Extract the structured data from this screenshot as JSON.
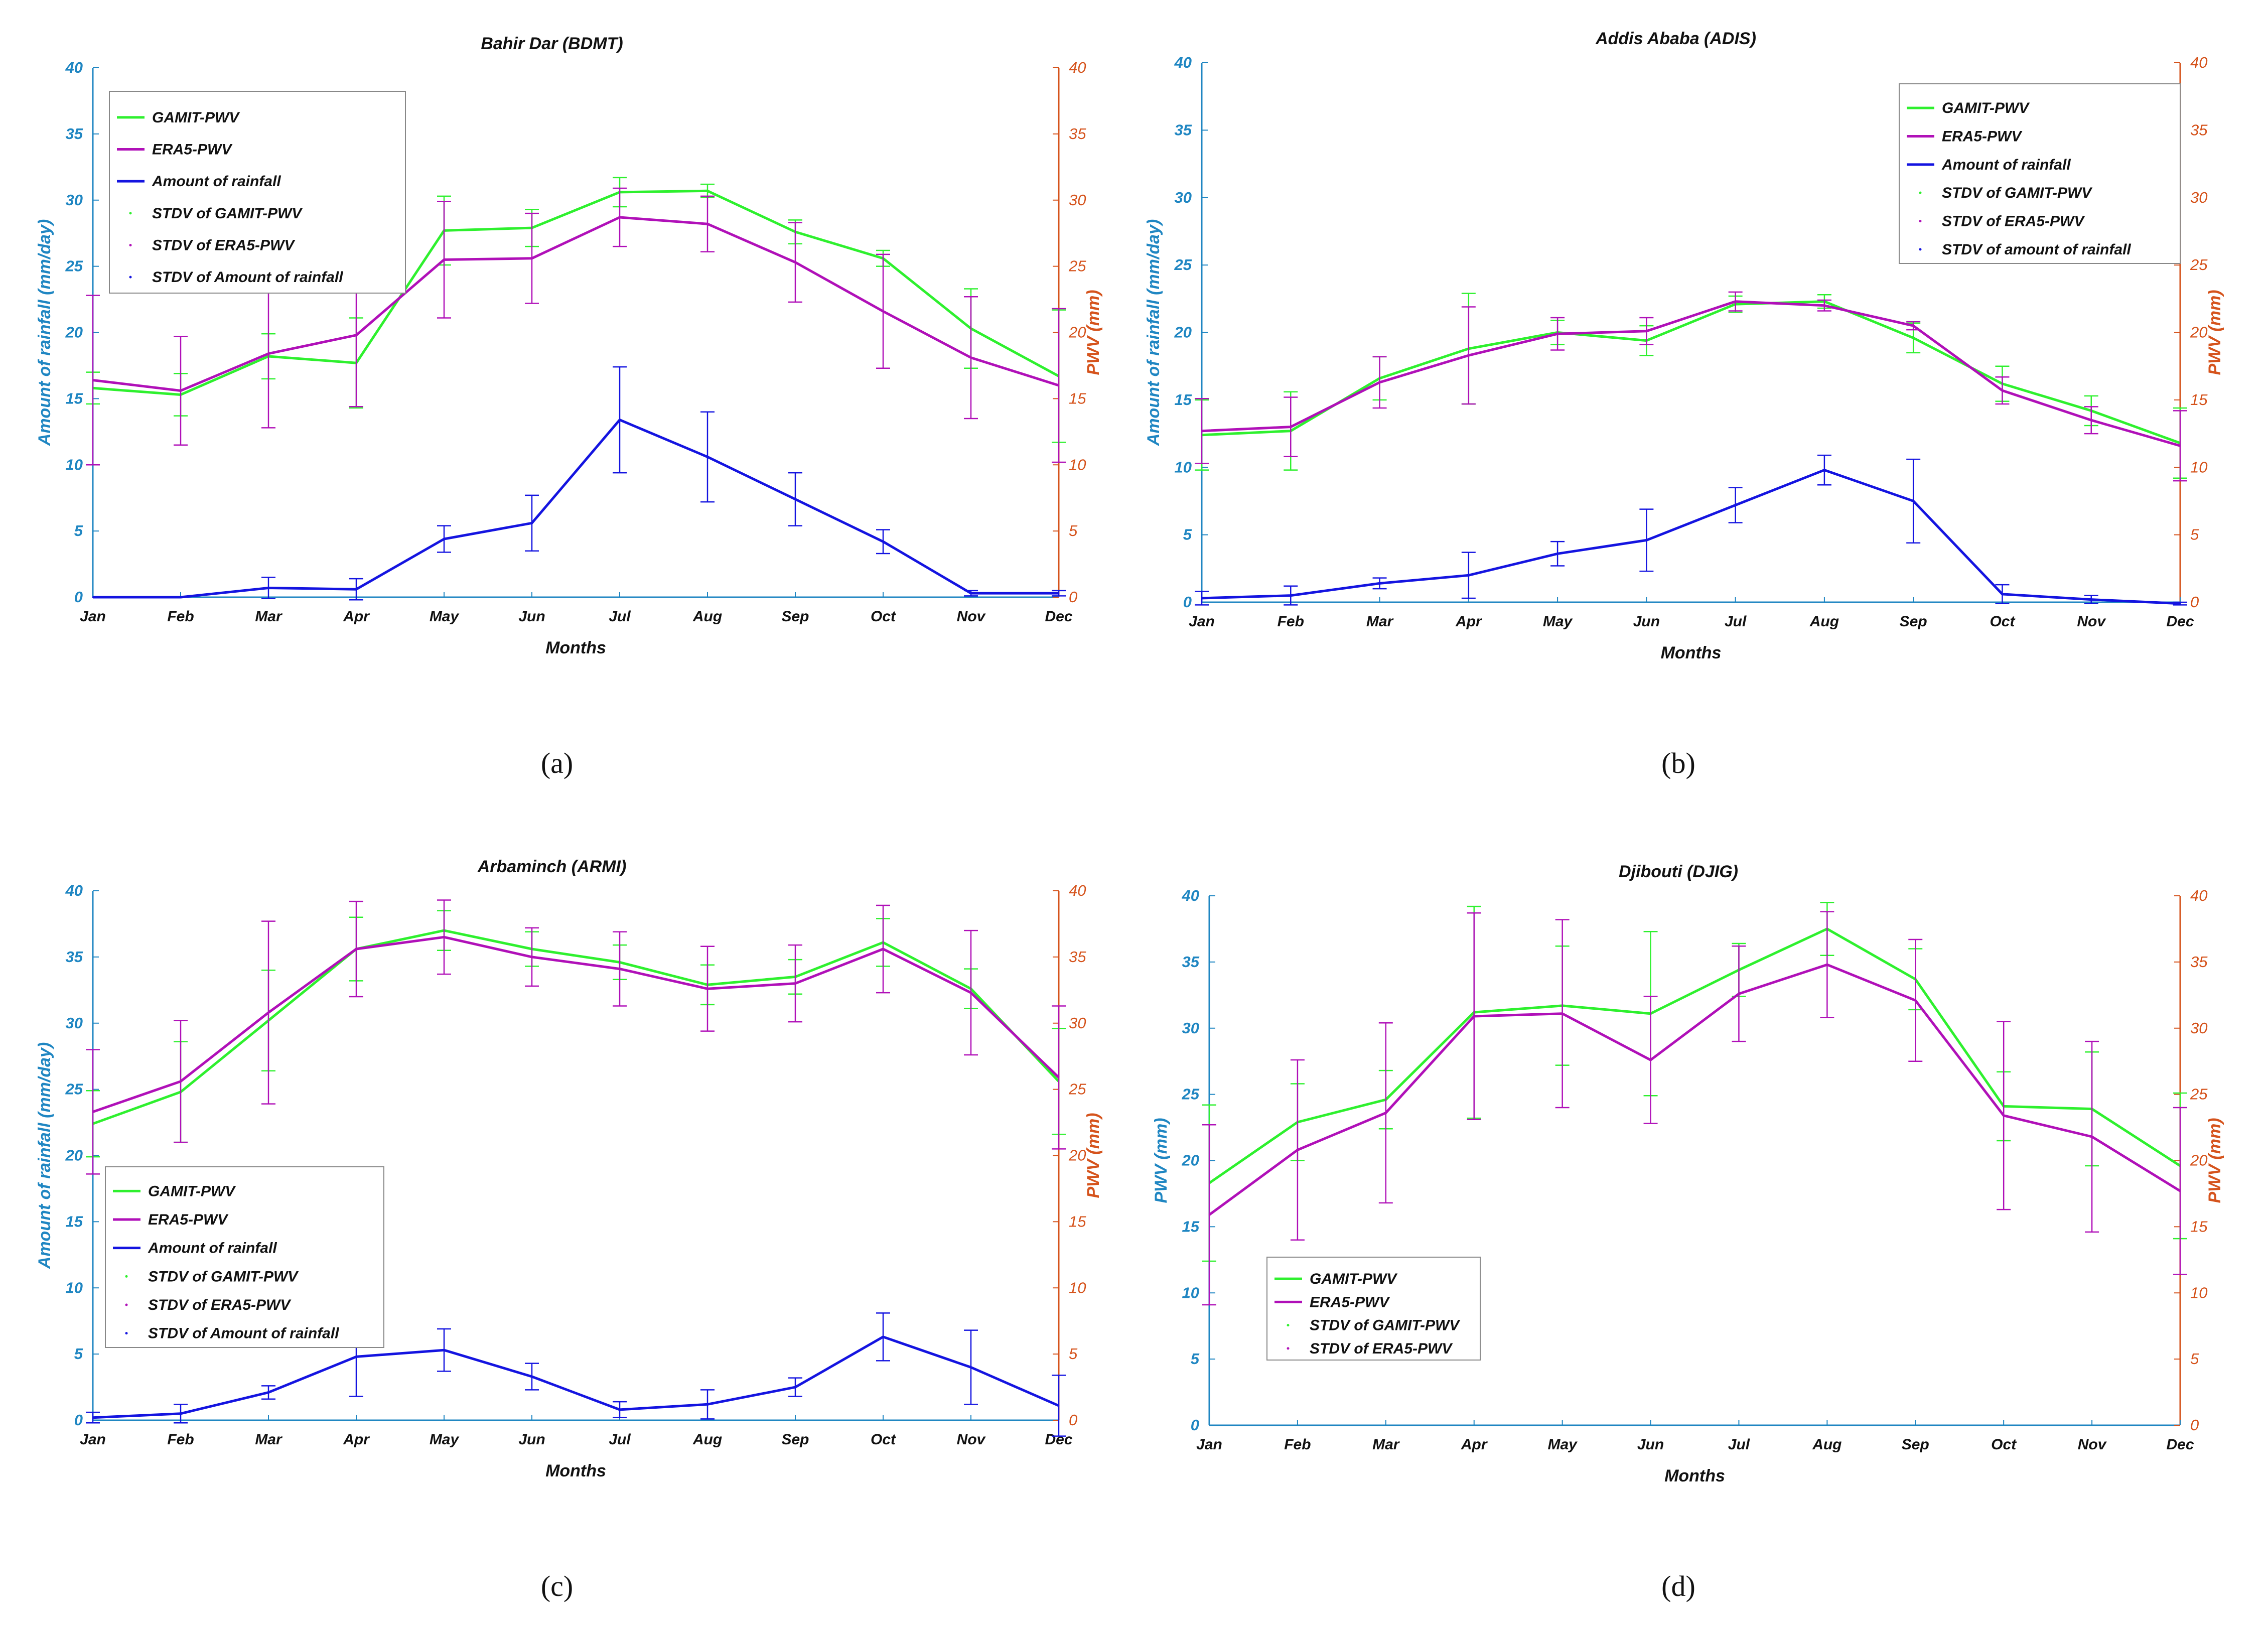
{
  "colors": {
    "gamit": "#2ef02e",
    "era5": "#b010b8",
    "rain": "#1414e0",
    "left_axis": "#1f86c2",
    "right_axis": "#d5531c"
  },
  "chart_data": [
    {
      "type": "line",
      "caption": "(a)",
      "title": "Bahir Dar (BDMT)",
      "xlabel": "Months",
      "ylabel_left": "Amount of rainfall  (mm/day)",
      "ylabel_right": "PWV (mm)",
      "categories": [
        "Jan",
        "Feb",
        "Mar",
        "Apr",
        "May",
        "Jun",
        "Jul",
        "Aug",
        "Sep",
        "Oct",
        "Nov",
        "Dec"
      ],
      "ylim": [
        0,
        40
      ],
      "yticks": [
        "0",
        "5",
        "10",
        "15",
        "20",
        "25",
        "30",
        "35",
        "40"
      ],
      "legend": "top-left",
      "series": [
        {
          "name": "GAMIT-PWV",
          "color_key": "gamit",
          "values": [
            15.8,
            15.3,
            18.2,
            17.7,
            27.7,
            27.9,
            30.6,
            30.7,
            27.6,
            25.6,
            20.3,
            16.7
          ],
          "std": [
            1.2,
            1.6,
            1.7,
            3.4,
            2.6,
            1.4,
            1.1,
            0.5,
            0.9,
            0.6,
            3.0,
            5.0
          ]
        },
        {
          "name": "ERA5-PWV",
          "color_key": "era5",
          "values": [
            16.4,
            15.6,
            18.4,
            19.8,
            25.5,
            25.6,
            28.7,
            28.2,
            25.3,
            21.6,
            18.1,
            16.0
          ],
          "std": [
            6.4,
            4.1,
            5.6,
            5.4,
            4.4,
            3.4,
            2.2,
            2.1,
            3.0,
            4.3,
            4.6,
            5.8
          ]
        },
        {
          "name": "Amount of rainfall",
          "color_key": "rain",
          "values": [
            0.0,
            0.0,
            0.7,
            0.6,
            4.4,
            5.6,
            13.4,
            10.6,
            7.4,
            4.2,
            0.3,
            0.3
          ],
          "std": [
            0,
            0,
            0.8,
            0.8,
            1.0,
            2.1,
            4.0,
            3.4,
            2.0,
            0.9,
            0.2,
            0.2
          ]
        }
      ],
      "legend_entries": [
        "GAMIT-PWV",
        "ERA5-PWV",
        "Amount of rainfall",
        "STDV of GAMIT-PWV",
        "STDV of ERA5-PWV",
        "STDV of Amount of rainfall"
      ]
    },
    {
      "type": "line",
      "caption": "(b)",
      "title": "Addis Ababa (ADIS)",
      "xlabel": "Months",
      "ylabel_left": "Amount of rainfall  (mm/day)",
      "ylabel_right": "PWV (mm)",
      "categories": [
        "Jan",
        "Feb",
        "Mar",
        "Apr",
        "May",
        "Jun",
        "Jul",
        "Aug",
        "Sep",
        "Oct",
        "Nov",
        "Dec"
      ],
      "ylim": [
        0,
        40
      ],
      "yticks": [
        "0",
        "5",
        "10",
        "15",
        "20",
        "25",
        "30",
        "35",
        "40"
      ],
      "legend": "top-right",
      "series": [
        {
          "name": "GAMIT-PWV",
          "color_key": "gamit",
          "values": [
            12.4,
            12.7,
            16.6,
            18.8,
            20.0,
            19.4,
            22.1,
            22.3,
            19.6,
            16.2,
            14.2,
            11.8
          ],
          "std": [
            2.6,
            2.9,
            1.6,
            4.1,
            0.9,
            1.1,
            0.6,
            0.5,
            1.1,
            1.3,
            1.1,
            2.6
          ]
        },
        {
          "name": "ERA5-PWV",
          "color_key": "era5",
          "values": [
            12.7,
            13.0,
            16.3,
            18.3,
            19.9,
            20.1,
            22.3,
            22.0,
            20.5,
            15.7,
            13.5,
            11.6
          ],
          "std": [
            2.4,
            2.2,
            1.9,
            3.6,
            1.2,
            1.0,
            0.7,
            0.4,
            0.3,
            1.0,
            1.0,
            2.6
          ]
        },
        {
          "name": "Amount of rainfall",
          "color_key": "rain",
          "values": [
            0.3,
            0.5,
            1.4,
            2.0,
            3.6,
            4.6,
            7.2,
            9.8,
            7.5,
            0.6,
            0.2,
            -0.1
          ],
          "std": [
            0.5,
            0.7,
            0.4,
            1.7,
            0.9,
            2.3,
            1.3,
            1.1,
            3.1,
            0.7,
            0.3,
            0.1
          ]
        }
      ],
      "legend_entries": [
        "GAMIT-PWV",
        "ERA5-PWV",
        "Amount of rainfall",
        "STDV of GAMIT-PWV",
        "STDV of ERA5-PWV",
        "STDV of amount of rainfall"
      ]
    },
    {
      "type": "line",
      "caption": "(c)",
      "title": "Arbaminch (ARMI)",
      "xlabel": "Months",
      "ylabel_left": "Amount of rainfall  (mm/day)",
      "ylabel_right": "PWV (mm)",
      "categories": [
        "Jan",
        "Feb",
        "Mar",
        "Apr",
        "May",
        "Jun",
        "Jul",
        "Aug",
        "Sep",
        "Oct",
        "Nov",
        "Dec"
      ],
      "ylim": [
        0,
        40
      ],
      "yticks": [
        "0",
        "5",
        "10",
        "15",
        "20",
        "25",
        "30",
        "35",
        "40"
      ],
      "legend": "bottom-left",
      "series": [
        {
          "name": "GAMIT-PWV",
          "color_key": "gamit",
          "values": [
            22.4,
            24.8,
            30.2,
            35.6,
            37.0,
            35.6,
            34.6,
            32.9,
            33.5,
            36.1,
            32.6,
            25.6
          ],
          "std": [
            2.5,
            3.8,
            3.8,
            2.4,
            1.5,
            1.3,
            1.3,
            1.5,
            1.3,
            1.8,
            1.5,
            4.0
          ]
        },
        {
          "name": "ERA5-PWV",
          "color_key": "era5",
          "values": [
            23.3,
            25.6,
            30.8,
            35.6,
            36.5,
            35.0,
            34.1,
            32.6,
            33.0,
            35.6,
            32.3,
            25.9
          ],
          "std": [
            4.7,
            4.6,
            6.9,
            3.6,
            2.8,
            2.2,
            2.8,
            3.2,
            2.9,
            3.3,
            4.7,
            5.4
          ]
        },
        {
          "name": "Amount of rainfall",
          "color_key": "rain",
          "values": [
            0.2,
            0.5,
            2.1,
            4.8,
            5.3,
            3.3,
            0.8,
            1.2,
            2.5,
            6.3,
            4.0,
            1.1
          ],
          "std": [
            0.4,
            0.7,
            0.5,
            3.0,
            1.6,
            1.0,
            0.6,
            1.1,
            0.7,
            1.8,
            2.8,
            2.3
          ]
        }
      ],
      "legend_entries": [
        "GAMIT-PWV",
        "ERA5-PWV",
        "Amount of rainfall",
        "STDV of GAMIT-PWV",
        "STDV of ERA5-PWV",
        "STDV of Amount of rainfall"
      ]
    },
    {
      "type": "line",
      "caption": "(d)",
      "title": "Djibouti (DJIG)",
      "xlabel": "Months",
      "ylabel_left": "PWV (mm)",
      "ylabel_right": "PWV (mm)",
      "categories": [
        "Jan",
        "Feb",
        "Mar",
        "Apr",
        "May",
        "Jun",
        "Jul",
        "Aug",
        "Sep",
        "Oct",
        "Nov",
        "Dec"
      ],
      "ylim": [
        0,
        40
      ],
      "yticks": [
        "0",
        "5",
        "10",
        "15",
        "20",
        "25",
        "30",
        "35",
        "40"
      ],
      "legend": "bottom-left",
      "series": [
        {
          "name": "GAMIT-PWV",
          "color_key": "gamit",
          "values": [
            18.3,
            22.9,
            24.6,
            31.2,
            31.7,
            31.1,
            34.4,
            37.5,
            33.7,
            24.1,
            23.9,
            19.6
          ],
          "std": [
            5.9,
            2.9,
            2.2,
            8.0,
            4.5,
            6.2,
            2.0,
            2.0,
            2.3,
            2.6,
            4.3,
            5.5
          ]
        },
        {
          "name": "ERA5-PWV",
          "color_key": "era5",
          "values": [
            15.9,
            20.8,
            23.6,
            30.9,
            31.1,
            27.6,
            32.6,
            34.8,
            32.1,
            23.4,
            21.8,
            17.7
          ],
          "std": [
            6.8,
            6.8,
            6.8,
            7.8,
            7.1,
            4.8,
            3.6,
            4.0,
            4.6,
            7.1,
            7.2,
            6.3
          ]
        }
      ],
      "legend_entries": [
        "GAMIT-PWV",
        "ERA5-PWV",
        "STDV of GAMIT-PWV",
        "STDV of ERA5-PWV"
      ]
    }
  ]
}
